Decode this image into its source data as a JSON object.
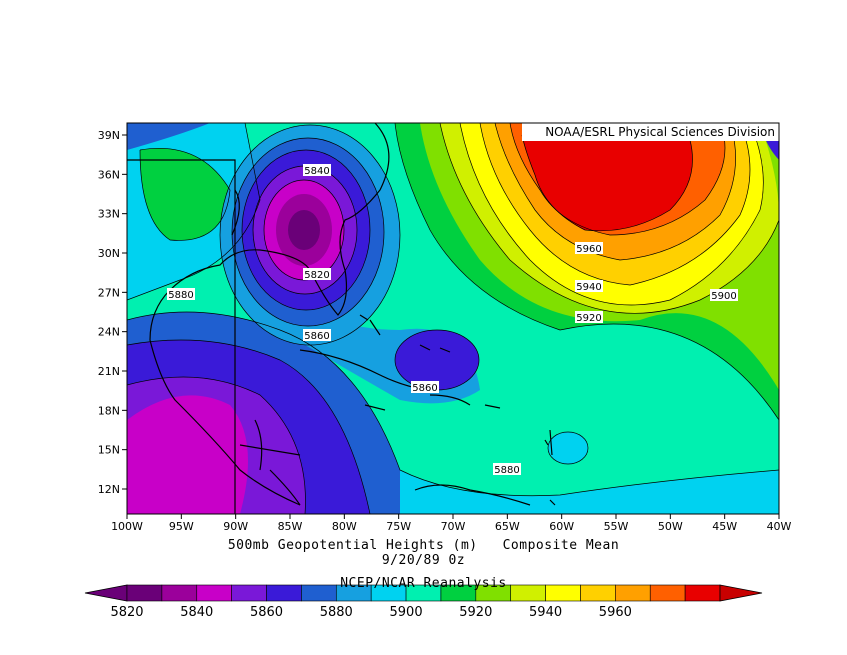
{
  "credit": "NOAA/ESRL Physical Sciences Division",
  "title": {
    "line1": "500mb Geopotential Heights (m)   Composite Mean",
    "line2": "9/20/89 0z",
    "source": "NCEP/NCAR Reanalysis"
  },
  "axes": {
    "x_ticks": [
      "100W",
      "95W",
      "90W",
      "85W",
      "80W",
      "75W",
      "70W",
      "65W",
      "60W",
      "55W",
      "50W",
      "45W",
      "40W"
    ],
    "y_ticks": [
      "39N",
      "36N",
      "33N",
      "30N",
      "27N",
      "24N",
      "21N",
      "18N",
      "15N",
      "12N"
    ]
  },
  "contour_labels": [
    {
      "text": "5840"
    },
    {
      "text": "5820"
    },
    {
      "text": "5880"
    },
    {
      "text": "5860"
    },
    {
      "text": "5860"
    },
    {
      "text": "5880"
    },
    {
      "text": "5960"
    },
    {
      "text": "5940"
    },
    {
      "text": "5920"
    },
    {
      "text": "5900"
    }
  ],
  "colorbar": {
    "labels": [
      "5820",
      "5840",
      "5860",
      "5880",
      "5900",
      "5920",
      "5940",
      "5960"
    ],
    "colors": [
      "#6a0078",
      "#9b009b",
      "#c800c8",
      "#7a18d8",
      "#3a1ad8",
      "#1f5fd0",
      "#16a0e0",
      "#00d2f0",
      "#00f0b0",
      "#00d040",
      "#80e000",
      "#d0f000",
      "#ffff00",
      "#ffd000",
      "#ffa000",
      "#ff6000",
      "#e80000"
    ]
  }
}
